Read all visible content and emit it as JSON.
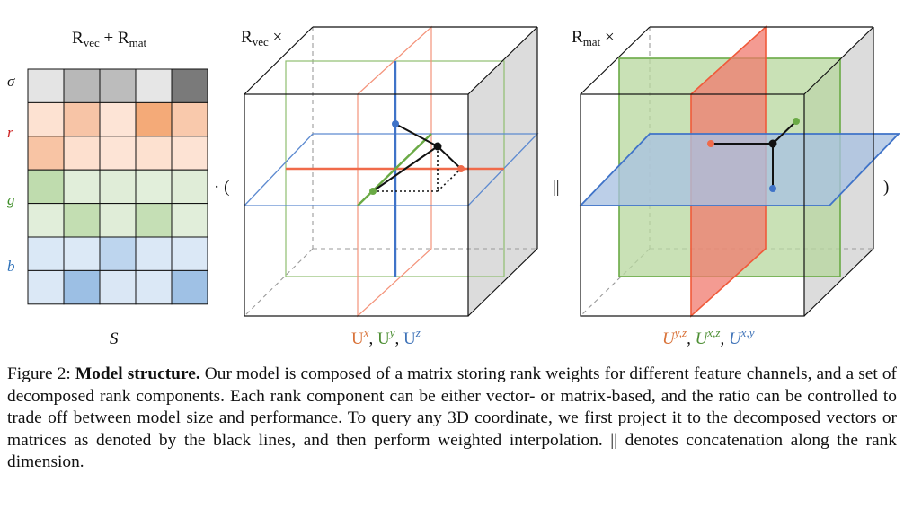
{
  "figure": {
    "matrix": {
      "title_base": "R",
      "title_sub1": "vec",
      "title_plus": " + ",
      "title_sub2": "mat",
      "caption": "S",
      "rows": [
        {
          "label": "σ",
          "color": "#111111",
          "cells": [
            "#e4e4e4",
            "#b8b8b8",
            "#bcbcbc",
            "#e6e6e6",
            "#7a7a7a"
          ]
        },
        {
          "label": "r",
          "color": "#cc1f1f",
          "cells": [
            "#fde2d2",
            "#f7c4a6",
            "#fde4d6",
            "#f4aa78",
            "#f9c9ac"
          ]
        },
        {
          "label": "",
          "color": "#cc1f1f",
          "cells": [
            "#f8c4a4",
            "#fde0cf",
            "#fde4d6",
            "#fde1d0",
            "#fde3d4"
          ]
        },
        {
          "label": "g",
          "color": "#3f8f2a",
          "cells": [
            "#bfdcae",
            "#e1eeda",
            "#e0edd8",
            "#e2efdb",
            "#e0edd8"
          ]
        },
        {
          "label": "",
          "color": "#3f8f2a",
          "cells": [
            "#e1eeda",
            "#c3deb2",
            "#e0edd8",
            "#c5dfb5",
            "#e1eeda"
          ]
        },
        {
          "label": "b",
          "color": "#2b6fb8",
          "cells": [
            "#dae8f6",
            "#dce9f6",
            "#bdd5ee",
            "#dbe8f6",
            "#dbe8f6"
          ]
        },
        {
          "label": "",
          "color": "#2b6fb8",
          "cells": [
            "#dbe8f6",
            "#9cbfe4",
            "#dae7f5",
            "#dbe8f6",
            "#9fc1e5"
          ]
        }
      ]
    },
    "dot_paren": "· (",
    "vec_cube": {
      "title_base": "R",
      "title_sub": "vec",
      "title_op": " ×",
      "labels": [
        {
          "base": "U",
          "sup": "x",
          "color": "#d9733a"
        },
        {
          "base": "U",
          "sup": "y",
          "color": "#4e8f35"
        },
        {
          "base": "U",
          "sup": "z",
          "color": "#3f73b8"
        }
      ],
      "sep": ", "
    },
    "concat": "||",
    "mat_cube": {
      "title_base": "R",
      "title_sub": "mat",
      "title_op": " ×",
      "labels": [
        {
          "base": "U",
          "sup": "y,z",
          "color": "#d9733a"
        },
        {
          "base": "U",
          "sup": "x,z",
          "color": "#4e8f35"
        },
        {
          "base": "U",
          "sup": "x,y",
          "color": "#3f73b8"
        }
      ],
      "sep": ", "
    },
    "close_paren": ")"
  },
  "caption": {
    "prefix": "Figure 2: ",
    "bold": "Model structure.",
    "text": " Our model is composed of a matrix storing rank weights for different feature channels, and a set of decomposed rank components. Each rank component can be either vector- or matrix-based, and the ratio can be controlled to trade off between model size and performance. To query any 3D coordinate, we first project it to the decomposed vectors or matrices as denoted by the black lines, and then perform weighted interpolation. || denotes concatenation along the rank dimension."
  },
  "colors": {
    "red_plane": "#f07a6e",
    "green_plane": "#b7d79e",
    "blue_plane": "#a9c2e2",
    "red_line": "#f06a4a",
    "green_line": "#6aaa45",
    "blue_line": "#3f73c8",
    "cube_edge": "#111111",
    "cube_shade": "#dadada"
  }
}
